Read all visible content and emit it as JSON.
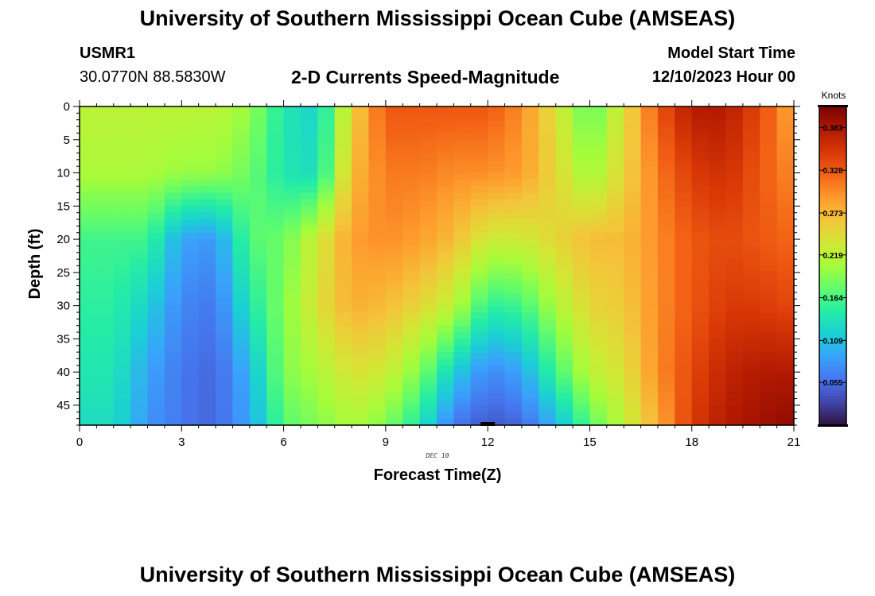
{
  "header": {
    "title": "University of Southern Mississippi Ocean Cube (AMSEAS)",
    "station_id": "USMR1",
    "coordinates": "30.0770N  88.5830W",
    "plot_title": "2-D Currents Speed-Magnitude",
    "model_start_label": "Model Start Time",
    "model_start_value": "12/10/2023 Hour 00"
  },
  "footer": {
    "title": "University of Southern Mississippi Ocean Cube (AMSEAS)"
  },
  "chart_data": {
    "type": "heatmap",
    "title": "2-D Currents Speed-Magnitude",
    "xlabel": "Forecast Time(Z)",
    "ylabel": "Depth (ft)",
    "date_label": "DEC 10",
    "x_range": [
      0,
      21
    ],
    "y_range": [
      0,
      48
    ],
    "x_ticks": [
      "0",
      "3",
      "6",
      "9",
      "12",
      "15",
      "18",
      "21"
    ],
    "y_ticks": [
      "0",
      "5",
      "10",
      "15",
      "20",
      "25",
      "30",
      "35",
      "40",
      "45"
    ],
    "x_values": [
      0,
      1,
      2,
      3,
      4,
      5,
      6,
      7,
      8,
      9,
      10,
      11,
      12,
      13,
      14,
      15,
      16,
      17,
      18,
      19,
      20,
      21
    ],
    "depth_values": [
      0,
      5,
      10,
      15,
      20,
      25,
      30,
      35,
      40,
      45,
      48
    ],
    "speed_knots": [
      [
        0.22,
        0.21,
        0.16,
        0.15,
        0.14,
        0.13
      ],
      [
        0.22,
        0.21,
        0.16,
        0.15,
        0.14,
        0.13
      ],
      [
        0.22,
        0.21,
        0.16,
        0.12,
        0.09,
        0.08
      ],
      [
        0.22,
        0.2,
        0.09,
        0.07,
        0.06,
        0.06
      ],
      [
        0.22,
        0.2,
        0.08,
        0.06,
        0.05,
        0.05
      ],
      [
        0.2,
        0.18,
        0.17,
        0.14,
        0.1,
        0.09
      ],
      [
        0.14,
        0.14,
        0.18,
        0.19,
        0.19,
        0.17
      ],
      [
        0.12,
        0.13,
        0.23,
        0.24,
        0.21,
        0.19
      ],
      [
        0.25,
        0.27,
        0.29,
        0.28,
        0.24,
        0.21
      ],
      [
        0.33,
        0.31,
        0.3,
        0.27,
        0.23,
        0.19
      ],
      [
        0.33,
        0.31,
        0.29,
        0.25,
        0.19,
        0.14
      ],
      [
        0.33,
        0.3,
        0.27,
        0.22,
        0.12,
        0.06
      ],
      [
        0.33,
        0.3,
        0.23,
        0.15,
        0.07,
        0.04
      ],
      [
        0.3,
        0.29,
        0.23,
        0.16,
        0.09,
        0.05
      ],
      [
        0.24,
        0.25,
        0.25,
        0.21,
        0.16,
        0.1
      ],
      [
        0.17,
        0.2,
        0.27,
        0.25,
        0.22,
        0.17
      ],
      [
        0.24,
        0.25,
        0.27,
        0.26,
        0.24,
        0.22
      ],
      [
        0.33,
        0.31,
        0.3,
        0.3,
        0.3,
        0.28
      ],
      [
        0.38,
        0.35,
        0.33,
        0.33,
        0.34,
        0.35
      ],
      [
        0.38,
        0.36,
        0.34,
        0.35,
        0.37,
        0.38
      ],
      [
        0.34,
        0.33,
        0.33,
        0.35,
        0.38,
        0.39
      ],
      [
        0.28,
        0.3,
        0.32,
        0.34,
        0.38,
        0.4
      ]
    ],
    "speed_depths": [
      0,
      10,
      20,
      30,
      40,
      48
    ],
    "colorbar": {
      "label": "Knots",
      "ticks": [
        "0.383",
        "0.328",
        "0.273",
        "0.219",
        "0.164",
        "0.109",
        "0.055"
      ],
      "range": [
        0.0,
        0.41
      ]
    },
    "colors": {
      "stops": [
        "#30123b",
        "#4145ab",
        "#4675ed",
        "#39a2fc",
        "#1bcfd4",
        "#24eca6",
        "#61fc6c",
        "#a4fc3b",
        "#d1e834",
        "#f3c63a",
        "#fe9b2d",
        "#f36315",
        "#d93806",
        "#b11901",
        "#7a0402"
      ]
    }
  }
}
